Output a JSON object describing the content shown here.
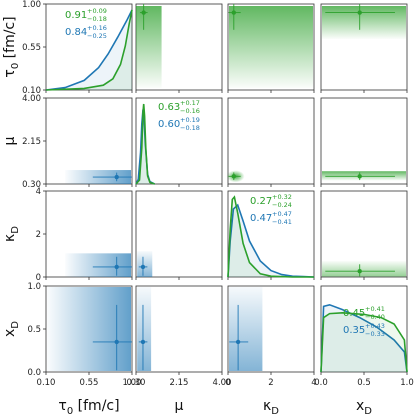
{
  "chart_data": {
    "type": "corner",
    "variables": [
      {
        "symbol": "τ",
        "subscript": "0",
        "unit": "[fm/c]",
        "range": [
          0.1,
          1.0
        ],
        "ticks": [
          "0.10",
          "0.55",
          "1.00"
        ]
      },
      {
        "symbol": "μ",
        "subscript": "",
        "unit": "",
        "range": [
          0.3,
          4.0
        ],
        "ticks": [
          "0.30",
          "2.15",
          "4.00"
        ]
      },
      {
        "symbol": "κ",
        "subscript": "D",
        "unit": "",
        "range": [
          0,
          4
        ],
        "ticks": [
          "0",
          "2",
          "4"
        ]
      },
      {
        "symbol": "x",
        "subscript": "D",
        "unit": "",
        "range": [
          0.0,
          1.0
        ],
        "ticks": [
          "0.0",
          "0.5",
          "1.0"
        ]
      }
    ],
    "series": [
      {
        "color": "#1f77b4",
        "estimates": [
          {
            "median": "0.84",
            "plus": "+0.16",
            "minus": "−0.25",
            "value": 0.84
          },
          {
            "median": "0.60",
            "plus": "+0.19",
            "minus": "−0.18",
            "value": 0.6
          },
          {
            "median": "0.47",
            "plus": "+0.47",
            "minus": "−0.41",
            "value": 0.47
          },
          {
            "median": "0.35",
            "plus": "+0.43",
            "minus": "−0.33",
            "value": 0.35
          }
        ]
      },
      {
        "color": "#2ca02c",
        "estimates": [
          {
            "median": "0.91",
            "plus": "+0.09",
            "minus": "−0.18",
            "value": 0.91
          },
          {
            "median": "0.63",
            "plus": "+0.17",
            "minus": "−0.16",
            "value": 0.63
          },
          {
            "median": "0.27",
            "plus": "+0.32",
            "minus": "−0.24",
            "value": 0.27
          },
          {
            "median": "0.45",
            "plus": "+0.41",
            "minus": "−0.40",
            "value": 0.45
          }
        ]
      }
    ],
    "diagonal_curves": {
      "tau0": {
        "blue": {
          "x": [
            0.1,
            0.3,
            0.5,
            0.65,
            0.75,
            0.85,
            0.95,
            1.0
          ],
          "y": [
            0.0,
            0.03,
            0.12,
            0.28,
            0.45,
            0.66,
            0.88,
            1.0
          ]
        },
        "green": {
          "x": [
            0.1,
            0.5,
            0.7,
            0.8,
            0.88,
            0.93,
            0.97,
            1.0
          ],
          "y": [
            0.0,
            0.02,
            0.06,
            0.14,
            0.32,
            0.55,
            0.82,
            1.0
          ]
        }
      },
      "mu": {
        "blue": {
          "x": [
            0.3,
            0.4,
            0.5,
            0.55,
            0.6,
            0.65,
            0.7,
            0.8,
            0.9,
            1.1
          ],
          "y": [
            0.0,
            0.06,
            0.4,
            0.75,
            0.93,
            0.8,
            0.5,
            0.12,
            0.03,
            0.0
          ]
        },
        "green": {
          "x": [
            0.3,
            0.45,
            0.55,
            0.6,
            0.63,
            0.67,
            0.72,
            0.8,
            0.9,
            1.1
          ],
          "y": [
            0.0,
            0.05,
            0.45,
            0.9,
            1.0,
            0.85,
            0.45,
            0.1,
            0.02,
            0.0
          ]
        }
      },
      "kappa": {
        "blue": {
          "x": [
            0.0,
            0.1,
            0.25,
            0.45,
            0.7,
            1.0,
            1.5,
            2.0,
            2.5,
            3.0,
            3.5,
            4.0
          ],
          "y": [
            0.0,
            0.45,
            0.85,
            0.9,
            0.7,
            0.45,
            0.2,
            0.08,
            0.03,
            0.01,
            0.005,
            0.0
          ]
        },
        "green": {
          "x": [
            0.0,
            0.1,
            0.2,
            0.3,
            0.45,
            0.7,
            1.0,
            1.5,
            2.0,
            3.0,
            4.0
          ],
          "y": [
            0.0,
            0.6,
            0.97,
            1.0,
            0.8,
            0.42,
            0.18,
            0.04,
            0.01,
            0.0,
            0.0
          ]
        }
      },
      "xD": {
        "blue": {
          "x": [
            0.0,
            0.03,
            0.1,
            0.25,
            0.45,
            0.65,
            0.85,
            0.97,
            1.0
          ],
          "y": [
            0.0,
            0.82,
            0.84,
            0.78,
            0.68,
            0.56,
            0.4,
            0.25,
            0.0
          ]
        },
        "green": {
          "x": [
            0.0,
            0.03,
            0.1,
            0.25,
            0.5,
            0.7,
            0.85,
            0.97,
            1.0
          ],
          "y": [
            0.0,
            0.68,
            0.73,
            0.74,
            0.72,
            0.68,
            0.6,
            0.4,
            0.0
          ]
        }
      }
    }
  }
}
